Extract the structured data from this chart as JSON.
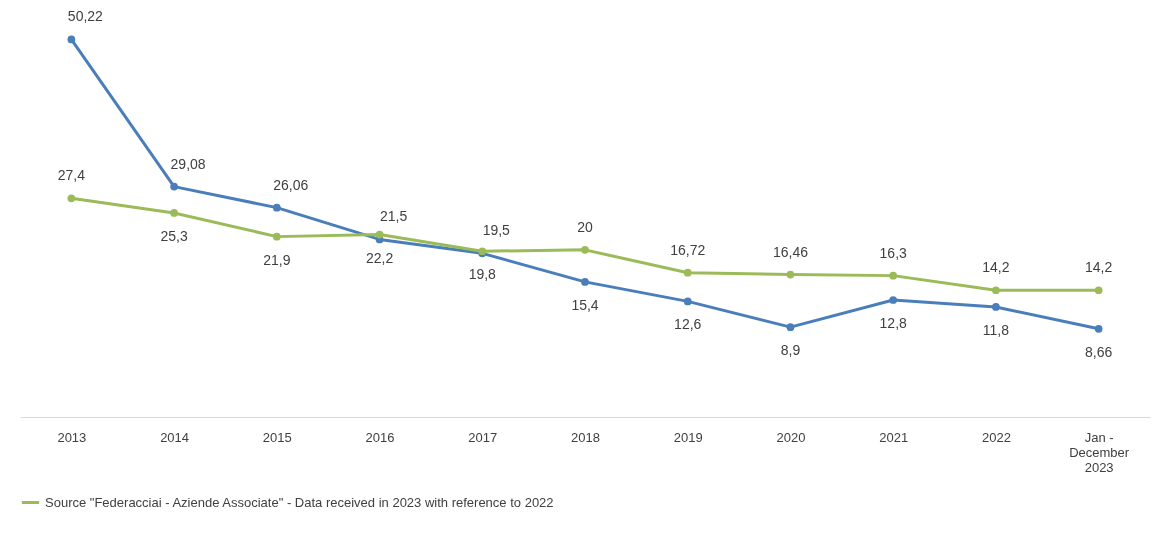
{
  "chart_data": {
    "type": "line",
    "categories": [
      "2013",
      "2014",
      "2015",
      "2016",
      "2017",
      "2018",
      "2019",
      "2020",
      "2021",
      "2022",
      "Jan -\nDecember\n2023"
    ],
    "series": [
      {
        "color": "#4a7ebb",
        "values": [
          50.22,
          29.08,
          26.06,
          21.5,
          19.5,
          15.4,
          12.6,
          8.9,
          12.8,
          11.8,
          8.66
        ],
        "value_labels": [
          "50,22",
          "29,08",
          "26,06",
          "21,5",
          "19,5",
          "15,4",
          "12,6",
          "8,9",
          "12,8",
          "11,8",
          "8,66"
        ]
      },
      {
        "name": "Source \"Federacciai - Aziende Associate\" - Data received in 2023 with reference to 2022",
        "color": "#9bbb59",
        "values": [
          27.4,
          25.3,
          21.9,
          22.2,
          19.8,
          20,
          16.72,
          16.46,
          16.3,
          14.2,
          14.2
        ],
        "value_labels": [
          "27,4",
          "25,3",
          "21,9",
          "22,2",
          "19,8",
          "20",
          "16,72",
          "16,46",
          "16,3",
          "14,2",
          "14,2"
        ]
      }
    ],
    "marker": "circle",
    "legend": "bottom"
  }
}
